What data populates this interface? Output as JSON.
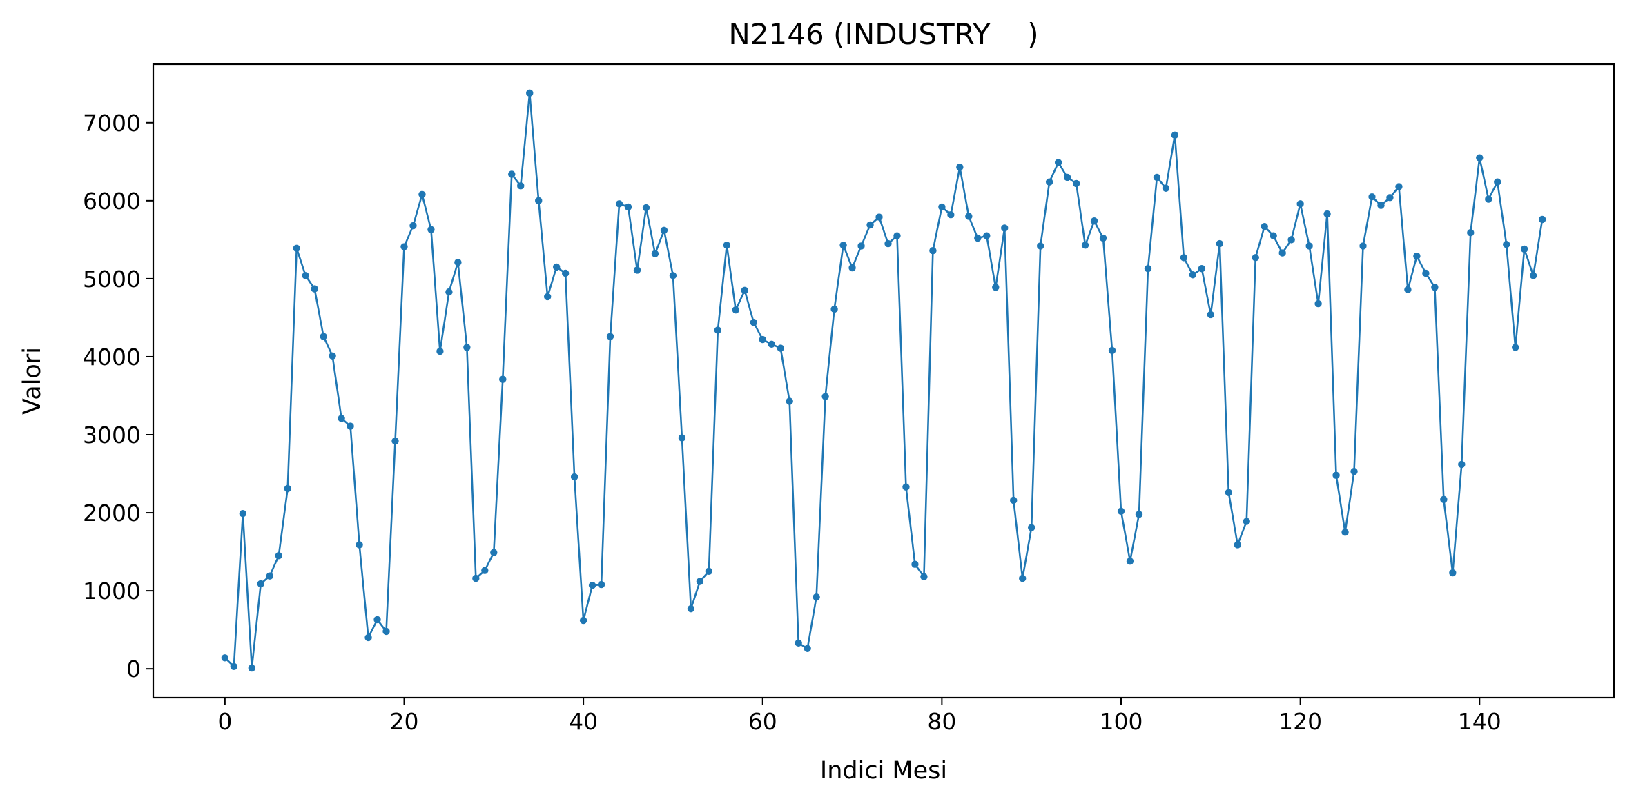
{
  "colors": {
    "series": "#1f77b4",
    "axes": "#000000",
    "background": "#ffffff"
  },
  "chart_data": {
    "type": "line",
    "title": "N2146 (INDUSTRY    )",
    "xlabel": "Indici Mesi",
    "ylabel": "Valori",
    "xlim": [
      -8,
      155
    ],
    "ylim": [
      -370,
      7750
    ],
    "x_ticks": [
      0,
      20,
      40,
      60,
      80,
      100,
      120,
      140
    ],
    "y_ticks": [
      0,
      1000,
      2000,
      3000,
      4000,
      5000,
      6000,
      7000
    ],
    "grid": false,
    "legend": "none",
    "marker": "circle",
    "series": [
      {
        "x": [
          0,
          1,
          2,
          3,
          4,
          5,
          6,
          7,
          8,
          9,
          10,
          11,
          12,
          13,
          14,
          15,
          16,
          17,
          18,
          19,
          20,
          21,
          22,
          23,
          24,
          25,
          26,
          27,
          28,
          29,
          30,
          31,
          32,
          33,
          34,
          35,
          36,
          37,
          38,
          39,
          40,
          41,
          42,
          43,
          44,
          45,
          46,
          47,
          48,
          49,
          50,
          51,
          52,
          53,
          54,
          55,
          56,
          57,
          58,
          59,
          60,
          61,
          62,
          63,
          64,
          65,
          66,
          67,
          68,
          69,
          70,
          71,
          72,
          73,
          74,
          75,
          76,
          77,
          78,
          79,
          80,
          81,
          82,
          83,
          84,
          85,
          86,
          87,
          88,
          89,
          90,
          91,
          92,
          93,
          94,
          95,
          96,
          97,
          98,
          99,
          100,
          101,
          102,
          103,
          104,
          105,
          106,
          107,
          108,
          109,
          110,
          111,
          112,
          113,
          114,
          115,
          116,
          117,
          118,
          119,
          120,
          121,
          122,
          123,
          124,
          125,
          126,
          127,
          128,
          129,
          130,
          131,
          132,
          133,
          134,
          135,
          136,
          137,
          138,
          139,
          140,
          141,
          142,
          143,
          144,
          145,
          146,
          147
        ],
        "y": [
          140,
          30,
          1990,
          10,
          1090,
          1190,
          1450,
          2310,
          5390,
          5040,
          4870,
          4260,
          4010,
          3210,
          3110,
          1590,
          400,
          630,
          480,
          2920,
          5410,
          5680,
          6080,
          5630,
          4070,
          4830,
          5210,
          4120,
          1160,
          1260,
          1490,
          3710,
          6340,
          6190,
          7380,
          6000,
          4770,
          5150,
          5070,
          2460,
          620,
          1070,
          1080,
          4260,
          5960,
          5920,
          5110,
          5910,
          5320,
          5620,
          5040,
          2960,
          770,
          1120,
          1250,
          4340,
          5430,
          4600,
          4850,
          4440,
          4220,
          4160,
          4110,
          3430,
          330,
          260,
          920,
          3490,
          4610,
          5430,
          5140,
          5420,
          5690,
          5790,
          5450,
          5550,
          2330,
          1340,
          1180,
          5360,
          5920,
          5820,
          6430,
          5800,
          5520,
          5550,
          4890,
          5650,
          2160,
          1160,
          1810,
          5420,
          6240,
          6490,
          6300,
          6220,
          5430,
          5740,
          5520,
          4080,
          2020,
          1380,
          1980,
          5130,
          6300,
          6160,
          6840,
          5270,
          5050,
          5130,
          4540,
          5450,
          2260,
          1590,
          1890,
          5270,
          5670,
          5550,
          5330,
          5500,
          5960,
          5420,
          4680,
          5830,
          2480,
          1750,
          2530,
          5420,
          6050,
          5940,
          6040,
          6180,
          4860,
          5290,
          5070,
          4890,
          2170,
          1230,
          2620,
          5590,
          6550,
          6020,
          6240,
          5440,
          4120,
          5380,
          5040,
          5760
        ]
      }
    ]
  }
}
